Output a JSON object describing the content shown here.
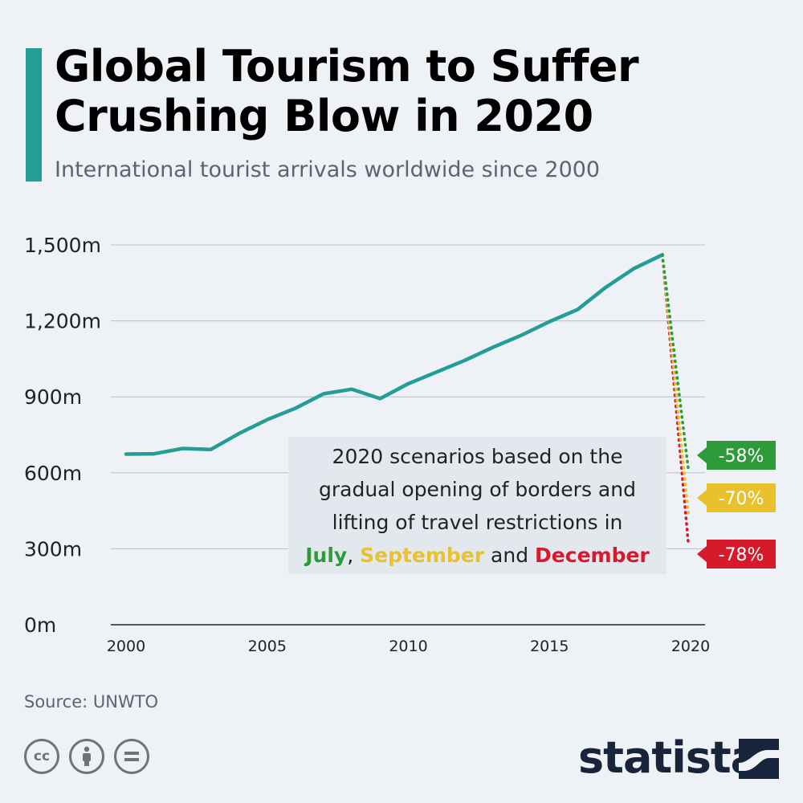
{
  "header": {
    "title": "Global Tourism to Suffer Crushing Blow in 2020",
    "subtitle": "International tourist arrivals worldwide since 2000"
  },
  "chart_data": {
    "type": "line",
    "title": "Global Tourism to Suffer Crushing Blow in 2020",
    "subtitle": "International tourist arrivals worldwide since 2000",
    "xlabel": "",
    "ylabel": "",
    "x_ticks": [
      "2000",
      "2005",
      "2010",
      "2015",
      "2020"
    ],
    "y_ticks": [
      "0m",
      "300m",
      "600m",
      "900m",
      "1,200m",
      "1,500m"
    ],
    "xlim": [
      2000,
      2020
    ],
    "ylim": [
      0,
      1500
    ],
    "grid": true,
    "series": [
      {
        "color": "#239d95",
        "x": [
          2000,
          2001,
          2002,
          2003,
          2004,
          2005,
          2006,
          2007,
          2008,
          2009,
          2010,
          2011,
          2012,
          2013,
          2014,
          2015,
          2016,
          2017,
          2018,
          2019
        ],
        "y": [
          674,
          675,
          696,
          692,
          755,
          810,
          855,
          912,
          930,
          893,
          952,
          998,
          1044,
          1096,
          1143,
          1197,
          1245,
          1333,
          1407,
          1461
        ]
      }
    ],
    "scenarios": [
      {
        "label": "-58%",
        "color": "#2e9b3a",
        "x": [
          2019,
          2019.92
        ],
        "y": [
          1461,
          614
        ]
      },
      {
        "label": "-70%",
        "color": "#e8c12c",
        "x": [
          2019,
          2019.92
        ],
        "y": [
          1461,
          438
        ]
      },
      {
        "label": "-78%",
        "color": "#d7192c",
        "x": [
          2019,
          2019.92
        ],
        "y": [
          1461,
          321
        ]
      }
    ],
    "annotation": {
      "line1": "2020 scenarios based on the",
      "line2": "gradual opening of borders and",
      "line3": "lifting of travel restrictions in",
      "july": "July",
      "comma": ", ",
      "september": "September",
      "and": " and ",
      "december": "December"
    }
  },
  "footer": {
    "source": "Source: UNWTO",
    "brand": "statista",
    "icons": [
      "cc-icon",
      "by-person-icon",
      "nd-equals-icon"
    ]
  }
}
